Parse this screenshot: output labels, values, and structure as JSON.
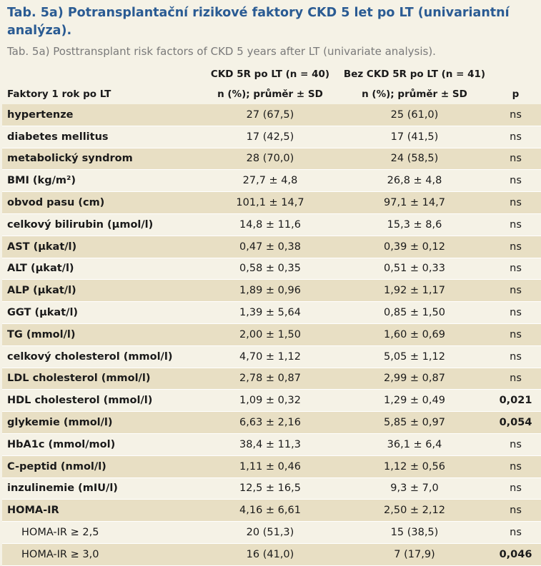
{
  "title": {
    "cz": "Tab. 5a) Potransplantační rizikové faktory CKD 5 let po LT (univariantní analýza).",
    "en": "Tab. 5a) Posttransplant risk factors of CKD 5 years after LT (univariate analysis)."
  },
  "header": {
    "col2_top": "CKD 5R po LT (n = 40)",
    "col3_top": "Bez CKD 5R po LT (n = 41)",
    "col1": "Faktory 1 rok po LT",
    "col2": "n (%); průměr ± SD",
    "col3": "n (%); průměr ± SD",
    "col4": "p"
  },
  "rows": [
    {
      "label": "hypertenze",
      "ckd": "27 (67,5)",
      "no_ckd": "25 (61,0)",
      "p": "ns"
    },
    {
      "label": "diabetes mellitus",
      "ckd": "17 (42,5)",
      "no_ckd": "17 (41,5)",
      "p": "ns"
    },
    {
      "label": "metabolický syndrom",
      "ckd": "28 (70,0)",
      "no_ckd": "24 (58,5)",
      "p": "ns"
    },
    {
      "label": "BMI (kg/m²)",
      "ckd": "27,7 ± 4,8",
      "no_ckd": "26,8 ± 4,8",
      "p": "ns"
    },
    {
      "label": "obvod pasu (cm)",
      "ckd": "101,1 ± 14,7",
      "no_ckd": "97,1 ± 14,7",
      "p": "ns"
    },
    {
      "label": "celkový bilirubin (μmol/l)",
      "ckd": "14,8 ± 11,6",
      "no_ckd": "15,3 ± 8,6",
      "p": "ns"
    },
    {
      "label": "AST (μkat/l)",
      "ckd": "0,47 ± 0,38",
      "no_ckd": "0,39 ± 0,12",
      "p": "ns"
    },
    {
      "label": "ALT (μkat/l)",
      "ckd": "0,58 ± 0,35",
      "no_ckd": "0,51 ± 0,33",
      "p": "ns"
    },
    {
      "label": "ALP (μkat/l)",
      "ckd": "1,89 ± 0,96",
      "no_ckd": "1,92 ± 1,17",
      "p": "ns"
    },
    {
      "label": "GGT (μkat/l)",
      "ckd": "1,39 ± 5,64",
      "no_ckd": "0,85 ± 1,50",
      "p": "ns"
    },
    {
      "label": "TG (mmol/l)",
      "ckd": "2,00 ± 1,50",
      "no_ckd": "1,60 ± 0,69",
      "p": "ns"
    },
    {
      "label": "celkový cholesterol (mmol/l)",
      "ckd": "4,70 ± 1,12",
      "no_ckd": "5,05 ± 1,12",
      "p": "ns"
    },
    {
      "label": "LDL cholesterol (mmol/l)",
      "ckd": "2,78 ± 0,87",
      "no_ckd": "2,99 ± 0,87",
      "p": "ns"
    },
    {
      "label": "HDL cholesterol (mmol/l)",
      "ckd": "1,09 ± 0,32",
      "no_ckd": "1,29 ± 0,49",
      "p": "0,021"
    },
    {
      "label": "glykemie (mmol/l)",
      "ckd": "6,63 ± 2,16",
      "no_ckd": "5,85 ± 0,97",
      "p": "0,054"
    },
    {
      "label": "HbA1c (mmol/mol)",
      "ckd": "38,4 ± 11,3",
      "no_ckd": "36,1 ± 6,4",
      "p": "ns"
    },
    {
      "label": "C-peptid (nmol/l)",
      "ckd": "1,11 ± 0,46",
      "no_ckd": "1,12 ± 0,56",
      "p": "ns"
    },
    {
      "label": "inzulinemie (mIU/l)",
      "ckd": "12,5 ± 16,5",
      "no_ckd": "9,3 ± 7,0",
      "p": "ns"
    },
    {
      "label": "HOMA-IR",
      "ckd": "4,16 ± 6,61",
      "no_ckd": "2,50 ± 2,12",
      "p": "ns"
    },
    {
      "label": "HOMA-IR ≥ 2,5",
      "ckd": "20 (51,3)",
      "no_ckd": "15 (38,5)",
      "p": "ns"
    },
    {
      "label": "HOMA-IR ≥ 3,0",
      "ckd": "16 (41,0)",
      "no_ckd": "7 (17,9)",
      "p": "0,046"
    }
  ]
}
